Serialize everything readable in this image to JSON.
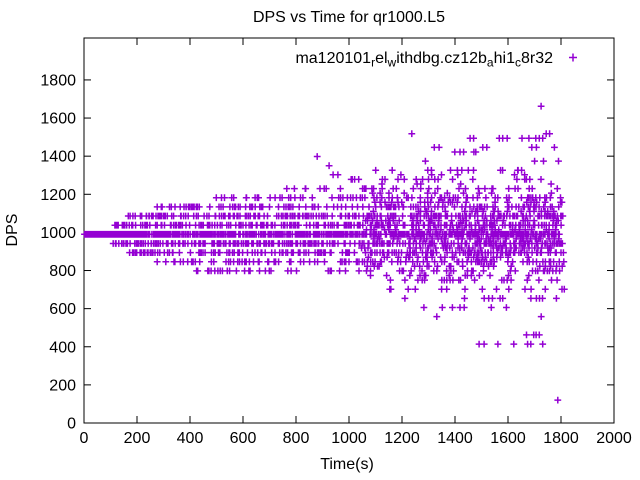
{
  "chart_data": {
    "type": "scatter",
    "title": "DPS vs Time for qr1000.L5",
    "xlabel": "Time(s)",
    "ylabel": "DPS",
    "xlim": [
      0,
      2000
    ],
    "ylim": [
      0,
      2020
    ],
    "xticks": [
      0,
      200,
      400,
      600,
      800,
      1000,
      1200,
      1400,
      1600,
      1800,
      2000
    ],
    "yticks": [
      0,
      200,
      400,
      600,
      800,
      1000,
      1200,
      1400,
      1600,
      1800
    ],
    "grid": false,
    "background_color": "#ffffff",
    "axis_color": "#000000",
    "marker_color": "#9400d3",
    "marker_shape": "plus",
    "legend": {
      "position": "top-right-inside",
      "entries": [
        {
          "label_raw": "ma120101_rel_withdbg.cz12b_ahi1_c8r32",
          "label_parts": [
            {
              "text": "ma120101",
              "sub": false
            },
            {
              "text": "r",
              "sub": true
            },
            {
              "text": "el",
              "sub": false
            },
            {
              "text": "w",
              "sub": true
            },
            {
              "text": "ithdbg.cz12b",
              "sub": false
            },
            {
              "text": "a",
              "sub": true
            },
            {
              "text": "hi1",
              "sub": false
            },
            {
              "text": "c",
              "sub": true
            },
            {
              "text": "8r32",
              "sub": false
            }
          ],
          "marker": "plus",
          "color": "#9400d3"
        }
      ]
    },
    "series": [
      {
        "name": "ma120101_rel_withdbg.cz12b_ahi1_c8r32",
        "color": "#9400d3",
        "marker": "plus",
        "solid_runs_format": "[dps, t_start, t_end, t_step]",
        "solid_runs": [
          [
            990,
            2,
            205,
            2
          ]
        ],
        "bands_format": "[dps, t_start, t_end, t_step, density]",
        "bands": [
          [
            990,
            205,
            1810,
            4,
            0.82
          ],
          [
            1038,
            110,
            1810,
            5,
            0.62
          ],
          [
            942,
            112,
            1810,
            5,
            0.62
          ],
          [
            1086,
            168,
            1810,
            5,
            0.52
          ],
          [
            894,
            172,
            1810,
            5,
            0.52
          ],
          [
            1134,
            272,
            1810,
            6,
            0.42
          ],
          [
            846,
            278,
            1810,
            6,
            0.4
          ],
          [
            1182,
            455,
            1810,
            7,
            0.32
          ],
          [
            798,
            410,
            1810,
            7,
            0.3
          ],
          [
            1230,
            720,
            1810,
            8,
            0.26
          ],
          [
            750,
            1115,
            1810,
            8,
            0.22
          ],
          [
            1278,
            950,
            1810,
            8,
            0.18
          ],
          [
            702,
            1090,
            1810,
            9,
            0.16
          ],
          [
            1326,
            1030,
            1810,
            9,
            0.13
          ],
          [
            654,
            1140,
            1810,
            10,
            0.12
          ],
          [
            1374,
            1250,
            1810,
            10,
            0.1
          ],
          [
            606,
            1150,
            1790,
            12,
            0.09
          ],
          [
            1422,
            1300,
            1800,
            12,
            0.1
          ],
          [
            558,
            1320,
            1790,
            12,
            0.08
          ],
          [
            966,
            1050,
            1810,
            7,
            0.4
          ],
          [
            1014,
            1050,
            1810,
            7,
            0.4
          ],
          [
            918,
            1050,
            1810,
            7,
            0.36
          ],
          [
            1062,
            1050,
            1810,
            7,
            0.36
          ],
          [
            870,
            1055,
            1810,
            8,
            0.3
          ],
          [
            1110,
            1055,
            1810,
            8,
            0.3
          ],
          [
            822,
            1060,
            1810,
            9,
            0.22
          ],
          [
            1158,
            1060,
            1810,
            9,
            0.22
          ],
          [
            1206,
            1070,
            1810,
            10,
            0.15
          ],
          [
            774,
            1070,
            1810,
            10,
            0.15
          ],
          [
            1254,
            1080,
            1810,
            10,
            0.12
          ],
          [
            1302,
            1090,
            1810,
            11,
            0.1
          ]
        ],
        "outlier_points_format": "[t, dps]",
        "outlier_points": [
          [
            1725,
            1662
          ],
          [
            1237,
            1518
          ],
          [
            1744,
            1518
          ],
          [
            1757,
            1518
          ],
          [
            1457,
            1494
          ],
          [
            1470,
            1494
          ],
          [
            1567,
            1494
          ],
          [
            1580,
            1494
          ],
          [
            1597,
            1494
          ],
          [
            1653,
            1494
          ],
          [
            1679,
            1494
          ],
          [
            1705,
            1494
          ],
          [
            1718,
            1494
          ],
          [
            1731,
            1494
          ],
          [
            1322,
            1446
          ],
          [
            1340,
            1446
          ],
          [
            1505,
            1446
          ],
          [
            1520,
            1446
          ],
          [
            1690,
            1446
          ],
          [
            1707,
            1446
          ],
          [
            1775,
            1446
          ],
          [
            880,
            1398
          ],
          [
            925,
            1350
          ],
          [
            940,
            1302
          ],
          [
            958,
            1302
          ],
          [
            1670,
            462
          ],
          [
            1697,
            462
          ],
          [
            1706,
            462
          ],
          [
            1718,
            462
          ],
          [
            1491,
            414
          ],
          [
            1510,
            414
          ],
          [
            1562,
            414
          ],
          [
            1622,
            414
          ],
          [
            1674,
            414
          ],
          [
            1686,
            414
          ],
          [
            1731,
            414
          ],
          [
            1788,
            120
          ]
        ]
      }
    ]
  }
}
